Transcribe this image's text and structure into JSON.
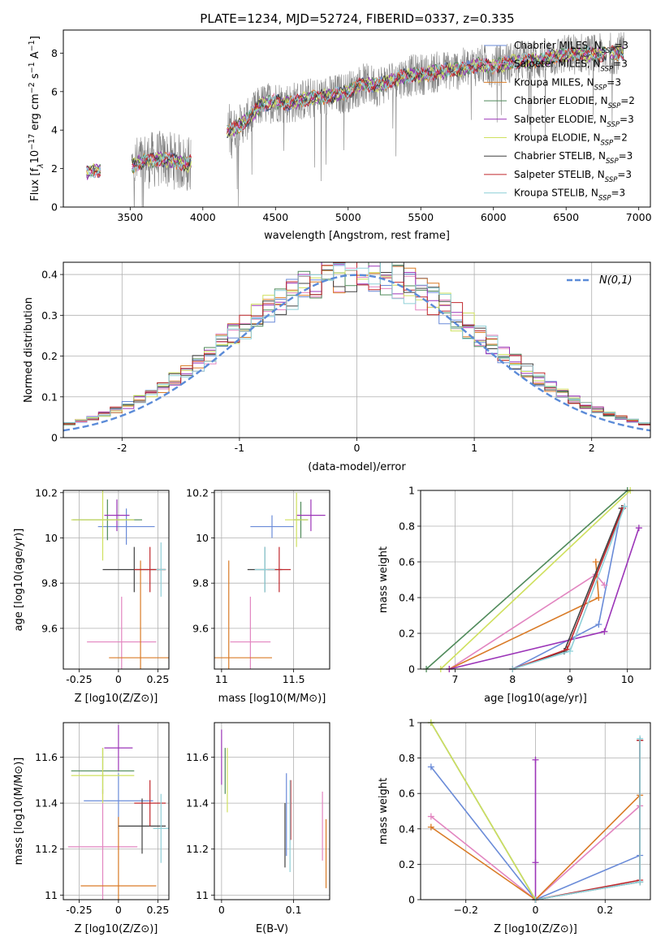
{
  "figure": {
    "title": "PLATE=1234, MJD=52724, FIBERID=0337, z=0.335"
  },
  "models": [
    {
      "name": "Chabrier MILES",
      "color": "#6a8bd8"
    },
    {
      "name": "Salpeter MILES",
      "color": "#e285c0"
    },
    {
      "name": "Kroupa MILES",
      "color": "#d97b27"
    },
    {
      "name": "Chabrier ELODIE",
      "color": "#4f8a5a"
    },
    {
      "name": "Salpeter ELODIE",
      "color": "#9c35b8"
    },
    {
      "name": "Kroupa ELODIE",
      "color": "#cfe05e"
    },
    {
      "name": "Chabrier STELIB",
      "color": "#404040"
    },
    {
      "name": "Salpeter STELIB",
      "color": "#c0282d"
    },
    {
      "name": "Kroupa STELIB",
      "color": "#8fd0d8"
    }
  ],
  "chart_data": [
    {
      "id": "spectrum",
      "type": "line",
      "title": "PLATE=1234, MJD=52724, FIBERID=0337, z=0.335",
      "xlabel": "wavelength [Angstrom, rest frame]",
      "ylabel": "Flux [f_λ 10^-17 erg cm^-2 s^-1 A^-1]",
      "xlim": [
        3040,
        7080
      ],
      "ylim": [
        0,
        9.2
      ],
      "xticks": [
        3500,
        4000,
        4500,
        5000,
        5500,
        6000,
        6500,
        7000
      ],
      "yticks": [
        0,
        2,
        4,
        6,
        8
      ],
      "legend": [
        "Chabrier MILES, N_SSP=3",
        "Salpeter MILES, N_SSP=3",
        "Kroupa MILES, N_SSP=3",
        "Chabrier ELODIE, N_SSP=2",
        "Salpeter ELODIE, N_SSP=3",
        "Kroupa ELODIE, N_SSP=2",
        "Chabrier STELIB, N_SSP=3",
        "Salpeter STELIB, N_SSP=3",
        "Kroupa STELIB, N_SSP=3"
      ],
      "legend_position": "right",
      "continuum": {
        "x": [
          3200,
          3300,
          3400,
          3500,
          3600,
          3700,
          3800,
          3900,
          4000,
          4100,
          4200,
          4300,
          4400,
          4500,
          4600,
          4700,
          4800,
          4900,
          5000,
          5100,
          5200,
          5300,
          5400,
          5500,
          5600,
          5700,
          5800,
          5900,
          6000,
          6100,
          6200,
          6300,
          6400,
          6500,
          6600,
          6700,
          6800,
          6900
        ],
        "y": [
          1.8,
          1.95,
          2.0,
          2.1,
          2.4,
          2.5,
          2.4,
          2.2,
          3.0,
          3.8,
          4.0,
          4.5,
          5.3,
          5.5,
          5.4,
          5.6,
          5.7,
          5.8,
          6.0,
          6.4,
          6.3,
          6.6,
          6.8,
          6.9,
          7.0,
          7.1,
          7.2,
          7.4,
          7.3,
          7.5,
          7.6,
          7.6,
          7.8,
          7.9,
          8.0,
          7.9,
          8.0,
          8.0
        ]
      }
    },
    {
      "id": "residuals",
      "type": "histogram",
      "xlabel": "(data-model)/error",
      "ylabel": "Normed distribution",
      "xlim": [
        -2.5,
        2.5
      ],
      "ylim": [
        0,
        0.43
      ],
      "xticks": [
        -2,
        -1,
        0,
        1,
        2
      ],
      "yticks": [
        0.0,
        0.1,
        0.2,
        0.3,
        0.4
      ],
      "legend": [
        "N(0,1)"
      ],
      "grid": true
    },
    {
      "id": "age-z",
      "type": "errorbar",
      "xlabel": "Z [log10(Z/Z⊙)]",
      "ylabel": "age [log10(age/yr)]",
      "xlim": [
        -0.35,
        0.32
      ],
      "ylim": [
        9.42,
        10.21
      ],
      "xticks": [
        -0.25,
        0.0,
        0.25
      ],
      "yticks": [
        9.6,
        9.8,
        10.0,
        10.2
      ],
      "points": [
        {
          "x": 0.05,
          "y": 10.05,
          "ex": 0.18,
          "ey": 0.08
        },
        {
          "x": 0.02,
          "y": 9.54,
          "ex": 0.22,
          "ey": 0.2
        },
        {
          "x": 0.14,
          "y": 9.47,
          "ex": 0.2,
          "ey": 0.43
        },
        {
          "x": -0.07,
          "y": 10.08,
          "ex": 0.22,
          "ey": 0.09
        },
        {
          "x": -0.01,
          "y": 10.1,
          "ex": 0.08,
          "ey": 0.07
        },
        {
          "x": -0.1,
          "y": 10.08,
          "ex": 0.2,
          "ey": 0.18
        },
        {
          "x": 0.1,
          "y": 9.86,
          "ex": 0.2,
          "ey": 0.1
        },
        {
          "x": 0.2,
          "y": 9.86,
          "ex": 0.1,
          "ey": 0.1
        },
        {
          "x": 0.27,
          "y": 9.86,
          "ex": 0.03,
          "ey": 0.12
        }
      ]
    },
    {
      "id": "age-mass",
      "type": "errorbar",
      "xlabel": "mass [log10(M/M⊙)]",
      "xlim": [
        10.95,
        11.75
      ],
      "ylim": [
        9.42,
        10.21
      ],
      "xticks": [
        11.0,
        11.5
      ],
      "yticks": [
        9.6,
        9.8,
        10.0,
        10.2
      ],
      "points": [
        {
          "x": 11.35,
          "y": 10.05,
          "ex": 0.15,
          "ey": 0.05
        },
        {
          "x": 11.2,
          "y": 9.54,
          "ex": 0.14,
          "ey": 0.2
        },
        {
          "x": 11.05,
          "y": 9.47,
          "ex": 0.3,
          "ey": 0.43
        },
        {
          "x": 11.55,
          "y": 10.08,
          "ex": 0.05,
          "ey": 0.08
        },
        {
          "x": 11.62,
          "y": 10.1,
          "ex": 0.1,
          "ey": 0.07
        },
        {
          "x": 11.52,
          "y": 10.08,
          "ex": 0.08,
          "ey": 0.12
        },
        {
          "x": 11.3,
          "y": 9.86,
          "ex": 0.12,
          "ey": 0.1
        },
        {
          "x": 11.4,
          "y": 9.86,
          "ex": 0.08,
          "ey": 0.1
        },
        {
          "x": 11.3,
          "y": 9.86,
          "ex": 0.07,
          "ey": 0.1
        }
      ]
    },
    {
      "id": "cumweight-age",
      "type": "line",
      "xlabel": "age [log10(age/yr)]",
      "ylabel": "mass weight",
      "xlim": [
        6.4,
        10.4
      ],
      "ylim": [
        0,
        1
      ],
      "xticks": [
        7,
        8,
        9,
        10
      ],
      "yticks": [
        0.0,
        0.2,
        0.4,
        0.6,
        0.8,
        1.0
      ],
      "series": [
        {
          "x": [
            8.0,
            9.5,
            9.9
          ],
          "y": [
            0.0,
            0.25,
            0.9
          ]
        },
        {
          "x": [
            6.9,
            9.45,
            9.6
          ],
          "y": [
            0.0,
            0.53,
            0.47
          ]
        },
        {
          "x": [
            6.9,
            9.5,
            9.45
          ],
          "y": [
            0.0,
            0.4,
            0.6
          ]
        },
        {
          "x": [
            6.5,
            10.0
          ],
          "y": [
            0.0,
            1.0
          ]
        },
        {
          "x": [
            6.9,
            9.6,
            10.2
          ],
          "y": [
            0.0,
            0.21,
            0.79
          ]
        },
        {
          "x": [
            6.75,
            10.05
          ],
          "y": [
            0.0,
            1.0
          ]
        },
        {
          "x": [
            8.0,
            8.9,
            9.9
          ],
          "y": [
            0.0,
            0.1,
            0.9
          ]
        },
        {
          "x": [
            8.0,
            8.95,
            9.92
          ],
          "y": [
            0.0,
            0.11,
            0.9
          ]
        },
        {
          "x": [
            8.0,
            9.0,
            9.95
          ],
          "y": [
            0.0,
            0.1,
            0.91
          ]
        }
      ]
    },
    {
      "id": "mass-z",
      "type": "errorbar",
      "xlabel": "Z [log10(Z/Z⊙)]",
      "ylabel": "mass [log10(M/M⊙)]",
      "xlim": [
        -0.35,
        0.32
      ],
      "ylim": [
        10.98,
        11.75
      ],
      "xticks": [
        -0.25,
        0.0,
        0.25
      ],
      "yticks": [
        11.0,
        11.2,
        11.4,
        11.6
      ],
      "points": [
        {
          "x": 0.0,
          "y": 11.41,
          "ex": 0.22,
          "ey": 0.12
        },
        {
          "x": -0.1,
          "y": 11.21,
          "ex": 0.22,
          "ey": 0.25
        },
        {
          "x": 0.0,
          "y": 11.04,
          "ex": 0.24,
          "ey": 0.3
        },
        {
          "x": -0.1,
          "y": 11.54,
          "ex": 0.2,
          "ey": 0.1
        },
        {
          "x": 0.0,
          "y": 11.64,
          "ex": 0.09,
          "ey": 0.1
        },
        {
          "x": -0.1,
          "y": 11.52,
          "ex": 0.2,
          "ey": 0.12
        },
        {
          "x": 0.15,
          "y": 11.3,
          "ex": 0.15,
          "ey": 0.12
        },
        {
          "x": 0.2,
          "y": 11.4,
          "ex": 0.1,
          "ey": 0.1
        },
        {
          "x": 0.27,
          "y": 11.29,
          "ex": 0.05,
          "ey": 0.15
        }
      ]
    },
    {
      "id": "mass-ebv",
      "type": "errorbar",
      "xlabel": "E(B-V)",
      "xlim": [
        -0.01,
        0.15
      ],
      "ylim": [
        10.98,
        11.75
      ],
      "xticks": [
        0.0,
        0.1
      ],
      "yticks": [
        11.0,
        11.2,
        11.4,
        11.6
      ],
      "points": [
        {
          "x": 0.09,
          "y": 11.35,
          "ex": 0.0,
          "ey": 0.18
        },
        {
          "x": 0.14,
          "y": 11.3,
          "ex": 0.0,
          "ey": 0.15
        },
        {
          "x": 0.145,
          "y": 11.18,
          "ex": 0.0,
          "ey": 0.15
        },
        {
          "x": 0.005,
          "y": 11.54,
          "ex": 0.0,
          "ey": 0.1
        },
        {
          "x": 0.0,
          "y": 11.6,
          "ex": 0.0,
          "ey": 0.12
        },
        {
          "x": 0.008,
          "y": 11.5,
          "ex": 0.0,
          "ey": 0.14
        },
        {
          "x": 0.088,
          "y": 11.26,
          "ex": 0.0,
          "ey": 0.14
        },
        {
          "x": 0.096,
          "y": 11.37,
          "ex": 0.0,
          "ey": 0.13
        },
        {
          "x": 0.095,
          "y": 11.3,
          "ex": 0.0,
          "ey": 0.2
        }
      ]
    },
    {
      "id": "cumweight-z",
      "type": "line",
      "xlabel": "Z [log10(Z/Z⊙)]",
      "ylabel": "mass weight",
      "xlim": [
        -0.33,
        0.33
      ],
      "ylim": [
        0,
        1
      ],
      "xticks": [
        -0.2,
        0.0,
        0.2
      ],
      "yticks": [
        0.0,
        0.2,
        0.4,
        0.6,
        0.8,
        1.0
      ],
      "series": [
        {
          "x": [
            -0.3,
            0.0,
            0.3,
            0.3
          ],
          "y": [
            0.75,
            0.0,
            0.25,
            0.9
          ]
        },
        {
          "x": [
            -0.3,
            0.0,
            0.3
          ],
          "y": [
            0.47,
            0.0,
            0.53
          ]
        },
        {
          "x": [
            -0.3,
            0.0,
            0.3
          ],
          "y": [
            0.41,
            0.0,
            0.59
          ]
        },
        {
          "x": [
            -0.3,
            0.0
          ],
          "y": [
            1.0,
            0.0
          ]
        },
        {
          "x": [
            0.0,
            0.0,
            0.0
          ],
          "y": [
            0.79,
            0.21,
            0.0
          ]
        },
        {
          "x": [
            -0.3,
            0.0
          ],
          "y": [
            1.0,
            0.0
          ]
        },
        {
          "x": [
            0.0,
            0.3,
            0.3
          ],
          "y": [
            0.0,
            0.1,
            0.9
          ]
        },
        {
          "x": [
            0.0,
            0.3,
            0.3
          ],
          "y": [
            0.0,
            0.11,
            0.9
          ]
        },
        {
          "x": [
            0.0,
            0.3,
            0.3
          ],
          "y": [
            0.0,
            0.1,
            0.91
          ]
        }
      ]
    }
  ]
}
